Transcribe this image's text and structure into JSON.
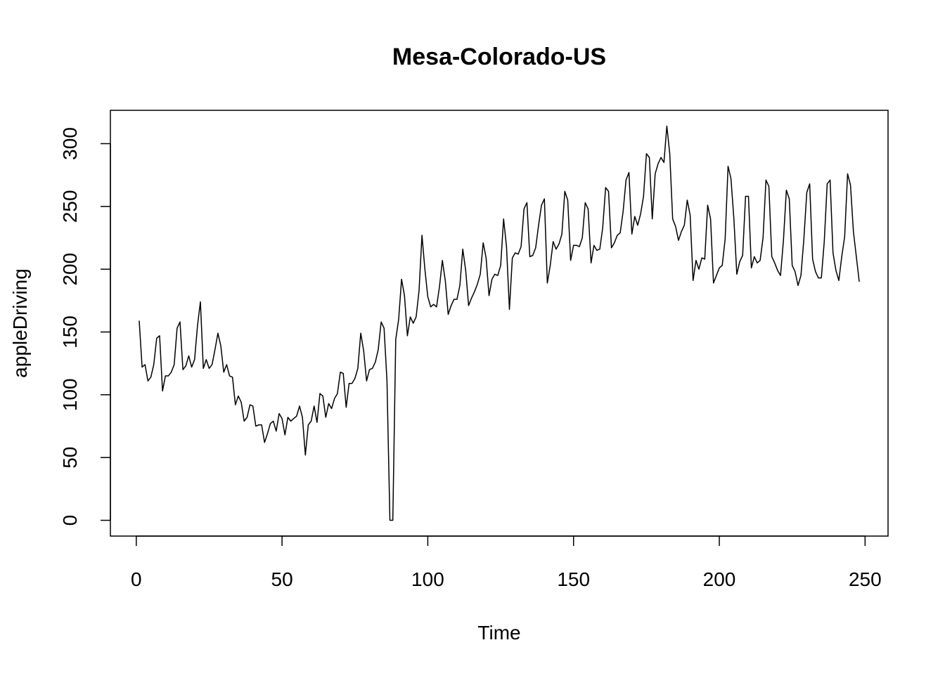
{
  "chart_data": {
    "type": "line",
    "title": "Mesa-Colorado-US",
    "xlabel": "Time",
    "ylabel": "appleDriving",
    "x": [
      1,
      2,
      3,
      4,
      5,
      6,
      7,
      8,
      9,
      10,
      11,
      12,
      13,
      14,
      15,
      16,
      17,
      18,
      19,
      20,
      21,
      22,
      23,
      24,
      25,
      26,
      27,
      28,
      29,
      30,
      31,
      32,
      33,
      34,
      35,
      36,
      37,
      38,
      39,
      40,
      41,
      42,
      43,
      44,
      45,
      46,
      47,
      48,
      49,
      50,
      51,
      52,
      53,
      54,
      55,
      56,
      57,
      58,
      59,
      60,
      61,
      62,
      63,
      64,
      65,
      66,
      67,
      68,
      69,
      70,
      71,
      72,
      73,
      74,
      75,
      76,
      77,
      78,
      79,
      80,
      81,
      82,
      83,
      84,
      85,
      86,
      87,
      88,
      89,
      90,
      91,
      92,
      93,
      94,
      95,
      96,
      97,
      98,
      99,
      100,
      101,
      102,
      103,
      104,
      105,
      106,
      107,
      108,
      109,
      110,
      111,
      112,
      113,
      114,
      115,
      116,
      117,
      118,
      119,
      120,
      121,
      122,
      123,
      124,
      125,
      126,
      127,
      128,
      129,
      130,
      131,
      132,
      133,
      134,
      135,
      136,
      137,
      138,
      139,
      140,
      141,
      142,
      143,
      144,
      145,
      146,
      147,
      148,
      149,
      150,
      151,
      152,
      153,
      154,
      155,
      156,
      157,
      158,
      159,
      160,
      161,
      162,
      163,
      164,
      165,
      166,
      167,
      168,
      169,
      170,
      171,
      172,
      173,
      174,
      175,
      176,
      177,
      178,
      179,
      180,
      181,
      182,
      183,
      184,
      185,
      186,
      187,
      188,
      189,
      190,
      191,
      192,
      193,
      194,
      195,
      196,
      197,
      198,
      199,
      200,
      201,
      202,
      203,
      204,
      205,
      206,
      207,
      208,
      209,
      210,
      211,
      212,
      213,
      214,
      215,
      216,
      217,
      218,
      219,
      220,
      221,
      222,
      223,
      224,
      225,
      226,
      227,
      228,
      229,
      230,
      231,
      232,
      233,
      234,
      235,
      236,
      237,
      238,
      239,
      240,
      241,
      242,
      243,
      244,
      245,
      246,
      247,
      248
    ],
    "values": [
      159,
      122,
      124,
      111,
      114,
      124,
      145,
      147,
      103,
      115,
      115,
      118,
      124,
      153,
      158,
      120,
      123,
      131,
      122,
      128,
      155,
      174,
      121,
      128,
      121,
      124,
      136,
      149,
      139,
      118,
      124,
      115,
      114,
      92,
      99,
      94,
      79,
      82,
      92,
      91,
      75,
      76,
      76,
      62,
      69,
      77,
      79,
      71,
      85,
      81,
      68,
      82,
      79,
      81,
      83,
      91,
      82,
      52,
      76,
      79,
      91,
      78,
      101,
      99,
      82,
      93,
      89,
      97,
      101,
      118,
      117,
      90,
      109,
      109,
      113,
      121,
      149,
      135,
      111,
      120,
      121,
      126,
      136,
      158,
      153,
      111,
      0,
      0,
      144,
      160,
      192,
      179,
      147,
      162,
      157,
      162,
      183,
      227,
      200,
      178,
      170,
      172,
      170,
      186,
      207,
      191,
      164,
      171,
      176,
      176,
      187,
      216,
      199,
      171,
      177,
      182,
      188,
      196,
      221,
      209,
      179,
      192,
      196,
      195,
      203,
      240,
      218,
      168,
      209,
      213,
      212,
      218,
      248,
      253,
      210,
      211,
      217,
      235,
      251,
      256,
      189,
      203,
      222,
      216,
      220,
      228,
      262,
      255,
      207,
      219,
      219,
      218,
      225,
      253,
      248,
      205,
      219,
      215,
      216,
      233,
      265,
      262,
      217,
      221,
      227,
      229,
      246,
      271,
      277,
      228,
      242,
      235,
      244,
      258,
      292,
      289,
      240,
      276,
      284,
      289,
      285,
      314,
      292,
      240,
      234,
      223,
      230,
      235,
      255,
      243,
      191,
      207,
      200,
      209,
      208,
      251,
      240,
      189,
      195,
      201,
      203,
      224,
      282,
      272,
      240,
      196,
      206,
      211,
      258,
      258,
      201,
      210,
      205,
      207,
      225,
      271,
      266,
      210,
      205,
      199,
      195,
      223,
      263,
      256,
      203,
      198,
      187,
      195,
      224,
      261,
      268,
      208,
      198,
      193,
      193,
      222,
      268,
      271,
      213,
      199,
      191,
      210,
      226,
      276,
      267,
      230,
      210,
      190
    ],
    "color": "#000000",
    "xlim": [
      -8.88,
      257.88
    ],
    "ylim": [
      -12.56,
      326.56
    ],
    "xticks": [
      0,
      50,
      100,
      150,
      200,
      250
    ],
    "yticks": [
      0,
      50,
      100,
      150,
      200,
      250,
      300
    ]
  }
}
